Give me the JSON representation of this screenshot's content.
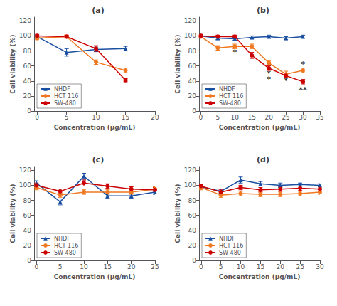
{
  "chart_data": [
    {
      "type": "line",
      "title": "(a)",
      "x_label": "Concentration (μg/mL)",
      "y_label": "Cell viability (%)",
      "xlim": [
        -0.5,
        20
      ],
      "xticks": [
        0,
        5,
        10,
        15,
        20
      ],
      "ylim": [
        0,
        125
      ],
      "yticks": [
        0,
        20,
        40,
        60,
        80,
        100,
        120
      ],
      "grid": false,
      "legend": "lower left",
      "series": [
        {
          "name": "NHDF",
          "color": "#1a4fa0",
          "marker": "triangle",
          "x": [
            0,
            5,
            10,
            15
          ],
          "values": [
            99,
            78,
            82,
            83
          ],
          "errors": [
            2,
            5,
            3,
            3
          ]
        },
        {
          "name": "HCT 116",
          "color": "#f07820",
          "marker": "circle",
          "x": [
            0,
            5,
            10,
            15
          ],
          "values": [
            97,
            99,
            65,
            54
          ],
          "errors": [
            2,
            2,
            3,
            3
          ]
        },
        {
          "name": "SW-480",
          "color": "#cc0000",
          "marker": "circle",
          "x": [
            0,
            5,
            10,
            15
          ],
          "values": [
            100,
            99,
            83,
            41
          ],
          "errors": [
            2,
            2,
            4,
            2
          ]
        }
      ]
    },
    {
      "type": "line",
      "title": "(b)",
      "x_label": "Concentration (μg/mL)",
      "y_label": "Cell viability (%)",
      "xlim": [
        -0.5,
        35
      ],
      "xticks": [
        0,
        5,
        10,
        15,
        20,
        25,
        30,
        35
      ],
      "ylim": [
        0,
        125
      ],
      "yticks": [
        0,
        20,
        40,
        60,
        80,
        100,
        120
      ],
      "grid": false,
      "legend": "lower left",
      "series": [
        {
          "name": "NHDF",
          "color": "#1a4fa0",
          "marker": "triangle",
          "x": [
            0,
            5,
            10,
            15,
            20,
            25,
            30
          ],
          "values": [
            100,
            97,
            96,
            98,
            99,
            97,
            99
          ],
          "errors": [
            2,
            2,
            2,
            2,
            2,
            2,
            2
          ]
        },
        {
          "name": "HCT 116",
          "color": "#f07820",
          "marker": "circle",
          "x": [
            0,
            5,
            10,
            15,
            20,
            25,
            30
          ],
          "values": [
            99,
            84,
            86,
            86,
            64,
            49,
            54
          ],
          "errors": [
            2,
            3,
            3,
            3,
            3,
            4,
            3
          ]
        },
        {
          "name": "SW-480",
          "color": "#cc0000",
          "marker": "circle",
          "x": [
            0,
            5,
            10,
            15,
            20,
            25,
            30
          ],
          "values": [
            100,
            99,
            99,
            74,
            57,
            47,
            39
          ],
          "errors": [
            2,
            2,
            2,
            4,
            3,
            3,
            3
          ]
        }
      ],
      "annotations": [
        {
          "x": 10,
          "y": 78,
          "text": "*"
        },
        {
          "x": 20,
          "y": 50,
          "text": "*"
        },
        {
          "x": 20,
          "y": 42,
          "text": "*"
        },
        {
          "x": 25,
          "y": 40,
          "text": "*"
        },
        {
          "x": 30,
          "y": 62,
          "text": "*"
        },
        {
          "x": 30,
          "y": 28,
          "text": "**"
        }
      ]
    },
    {
      "type": "line",
      "title": "(c)",
      "x_label": "Concentration (μg/mL)",
      "y_label": "Cell viability (%)",
      "xlim": [
        -0.5,
        25
      ],
      "xticks": [
        0,
        5,
        10,
        15,
        20,
        25
      ],
      "ylim": [
        0,
        125
      ],
      "yticks": [
        0,
        20,
        40,
        60,
        80,
        100,
        120
      ],
      "grid": false,
      "legend": "lower left",
      "series": [
        {
          "name": "NHDF",
          "color": "#1a4fa0",
          "marker": "triangle",
          "x": [
            0,
            5,
            10,
            15,
            20,
            25
          ],
          "values": [
            103,
            78,
            112,
            86,
            86,
            91
          ],
          "errors": [
            3,
            4,
            4,
            3,
            3,
            3
          ]
        },
        {
          "name": "HCT 116",
          "color": "#f07820",
          "marker": "circle",
          "x": [
            0,
            5,
            10,
            15,
            20,
            25
          ],
          "values": [
            97,
            87,
            91,
            91,
            91,
            95
          ],
          "errors": [
            3,
            3,
            3,
            3,
            3,
            3
          ]
        },
        {
          "name": "SW-480",
          "color": "#cc0000",
          "marker": "circle",
          "x": [
            0,
            5,
            10,
            15,
            20,
            25
          ],
          "values": [
            100,
            92,
            103,
            99,
            95,
            94
          ],
          "errors": [
            3,
            3,
            4,
            3,
            3,
            3
          ]
        }
      ]
    },
    {
      "type": "line",
      "title": "(d)",
      "x_label": "Concentration (μg/mL)",
      "y_label": "Cell viability (%)",
      "xlim": [
        -0.5,
        30
      ],
      "xticks": [
        0,
        5,
        10,
        15,
        20,
        25,
        30
      ],
      "ylim": [
        0,
        125
      ],
      "yticks": [
        0,
        20,
        40,
        60,
        80,
        100,
        120
      ],
      "grid": false,
      "legend": "lower left",
      "series": [
        {
          "name": "NHDF",
          "color": "#1a4fa0",
          "marker": "triangle",
          "x": [
            0,
            5,
            10,
            15,
            20,
            25,
            30
          ],
          "values": [
            98,
            92,
            107,
            102,
            100,
            101,
            100
          ],
          "errors": [
            2,
            3,
            4,
            3,
            3,
            2,
            2
          ]
        },
        {
          "name": "HCT 116",
          "color": "#f07820",
          "marker": "circle",
          "x": [
            0,
            5,
            10,
            15,
            20,
            25,
            30
          ],
          "values": [
            97,
            87,
            89,
            88,
            88,
            89,
            91
          ],
          "errors": [
            3,
            3,
            3,
            3,
            3,
            3,
            3
          ]
        },
        {
          "name": "SW-480",
          "color": "#cc0000",
          "marker": "circle",
          "x": [
            0,
            5,
            10,
            15,
            20,
            25,
            30
          ],
          "values": [
            99,
            91,
            97,
            94,
            95,
            96,
            95
          ],
          "errors": [
            2,
            3,
            3,
            3,
            3,
            3,
            3
          ]
        }
      ]
    }
  ]
}
